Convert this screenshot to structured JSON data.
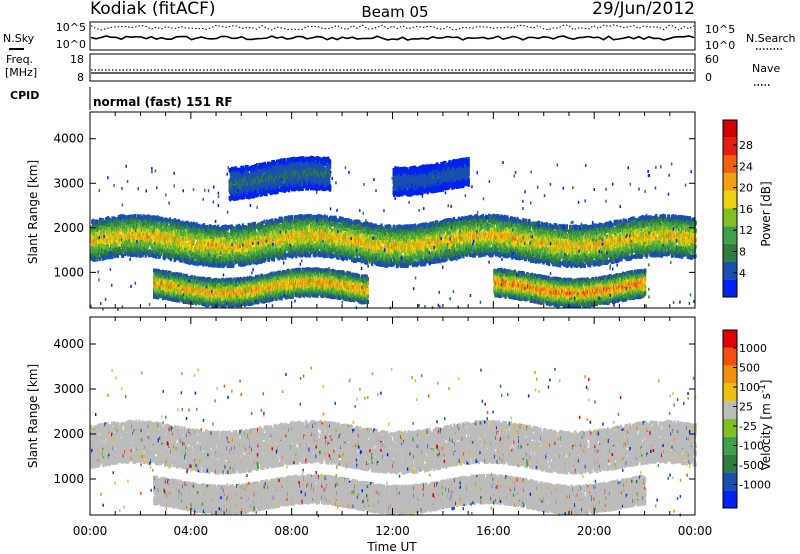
{
  "header": {
    "station": "Kodiak (fitACF)",
    "beam": "Beam 05",
    "date": "29/Jun/2012"
  },
  "small_panels": {
    "nsky_label": "N.Sky",
    "nsky_ticks": [
      "10^5",
      "10^0"
    ],
    "nsearch_label": "N.Search",
    "nsearch_ticks": [
      "10^5",
      "10^0"
    ],
    "freq_label_1": "Freq.",
    "freq_label_2": "[MHz]",
    "freq_ticks": [
      "18",
      "8"
    ],
    "nave_label": "Nave",
    "nave_ticks": [
      "60",
      "0"
    ],
    "cpid_label": "CPID",
    "cpid_text": "normal (fast) 151 RF"
  },
  "colors": {
    "power": [
      "#0022ee",
      "#1a4fb0",
      "#2e7d3f",
      "#3fa04a",
      "#80c020",
      "#f0d010",
      "#f0a010",
      "#f06010",
      "#e02010",
      "#d00000"
    ],
    "velocity": [
      "#0022ee",
      "#1a4fb0",
      "#2e7d3f",
      "#3fa04a",
      "#80c020",
      "#bcbcbc",
      "#f0c010",
      "#f09010",
      "#f05010",
      "#e00000"
    ],
    "ground_scatter": "#bcbcbc"
  },
  "chart_data": [
    {
      "type": "heatmap",
      "title": "",
      "xlabel": "Time UT",
      "ylabel": "Slant Range [km]",
      "xlim": [
        0,
        24
      ],
      "ylim": [
        200,
        4600
      ],
      "x_ticks": [
        "00:00",
        "04:00",
        "08:00",
        "12:00",
        "16:00",
        "20:00",
        "00:00"
      ],
      "y_ticks": [
        "1000",
        "2000",
        "3000",
        "4000"
      ],
      "colorbar": {
        "label": "Power [dB]",
        "ticks": [
          "28",
          "24",
          "20",
          "16",
          "12",
          "8",
          "4"
        ],
        "range": [
          0,
          32
        ]
      },
      "bands": [
        {
          "start_h": 0.0,
          "end_h": 24.0,
          "range_km": [
            1300,
            2200
          ],
          "peak_db": 22
        },
        {
          "start_h": 2.5,
          "end_h": 11.0,
          "range_km": [
            400,
            1000
          ],
          "peak_db": 24
        },
        {
          "start_h": 16.0,
          "end_h": 22.0,
          "range_km": [
            400,
            1000
          ],
          "peak_db": 26
        },
        {
          "start_h": 5.5,
          "end_h": 9.5,
          "range_km": [
            2800,
            3500
          ],
          "peak_db": 8
        },
        {
          "start_h": 12.0,
          "end_h": 15.0,
          "range_km": [
            2900,
            3500
          ],
          "peak_db": 6
        }
      ]
    },
    {
      "type": "heatmap",
      "title": "",
      "xlabel": "Time UT",
      "ylabel": "Slant Range [km]",
      "xlim": [
        0,
        24
      ],
      "ylim": [
        200,
        4600
      ],
      "x_ticks": [
        "00:00",
        "04:00",
        "08:00",
        "12:00",
        "16:00",
        "20:00",
        "00:00"
      ],
      "y_ticks": [
        "1000",
        "2000",
        "3000",
        "4000"
      ],
      "colorbar": {
        "label": "Velocity [m s^-1]",
        "ticks": [
          "1000",
          "500",
          "100",
          "25",
          "-25",
          "-100",
          "-500",
          "-1000"
        ],
        "range": [
          -1200,
          1200
        ]
      },
      "bands": [
        {
          "start_h": 0.0,
          "end_h": 24.0,
          "range_km": [
            1300,
            2200
          ],
          "velocity": 0,
          "ground_scatter": true
        },
        {
          "start_h": 2.5,
          "end_h": 22.0,
          "range_km": [
            400,
            1000
          ],
          "velocity": 0,
          "ground_scatter": true
        }
      ]
    }
  ]
}
